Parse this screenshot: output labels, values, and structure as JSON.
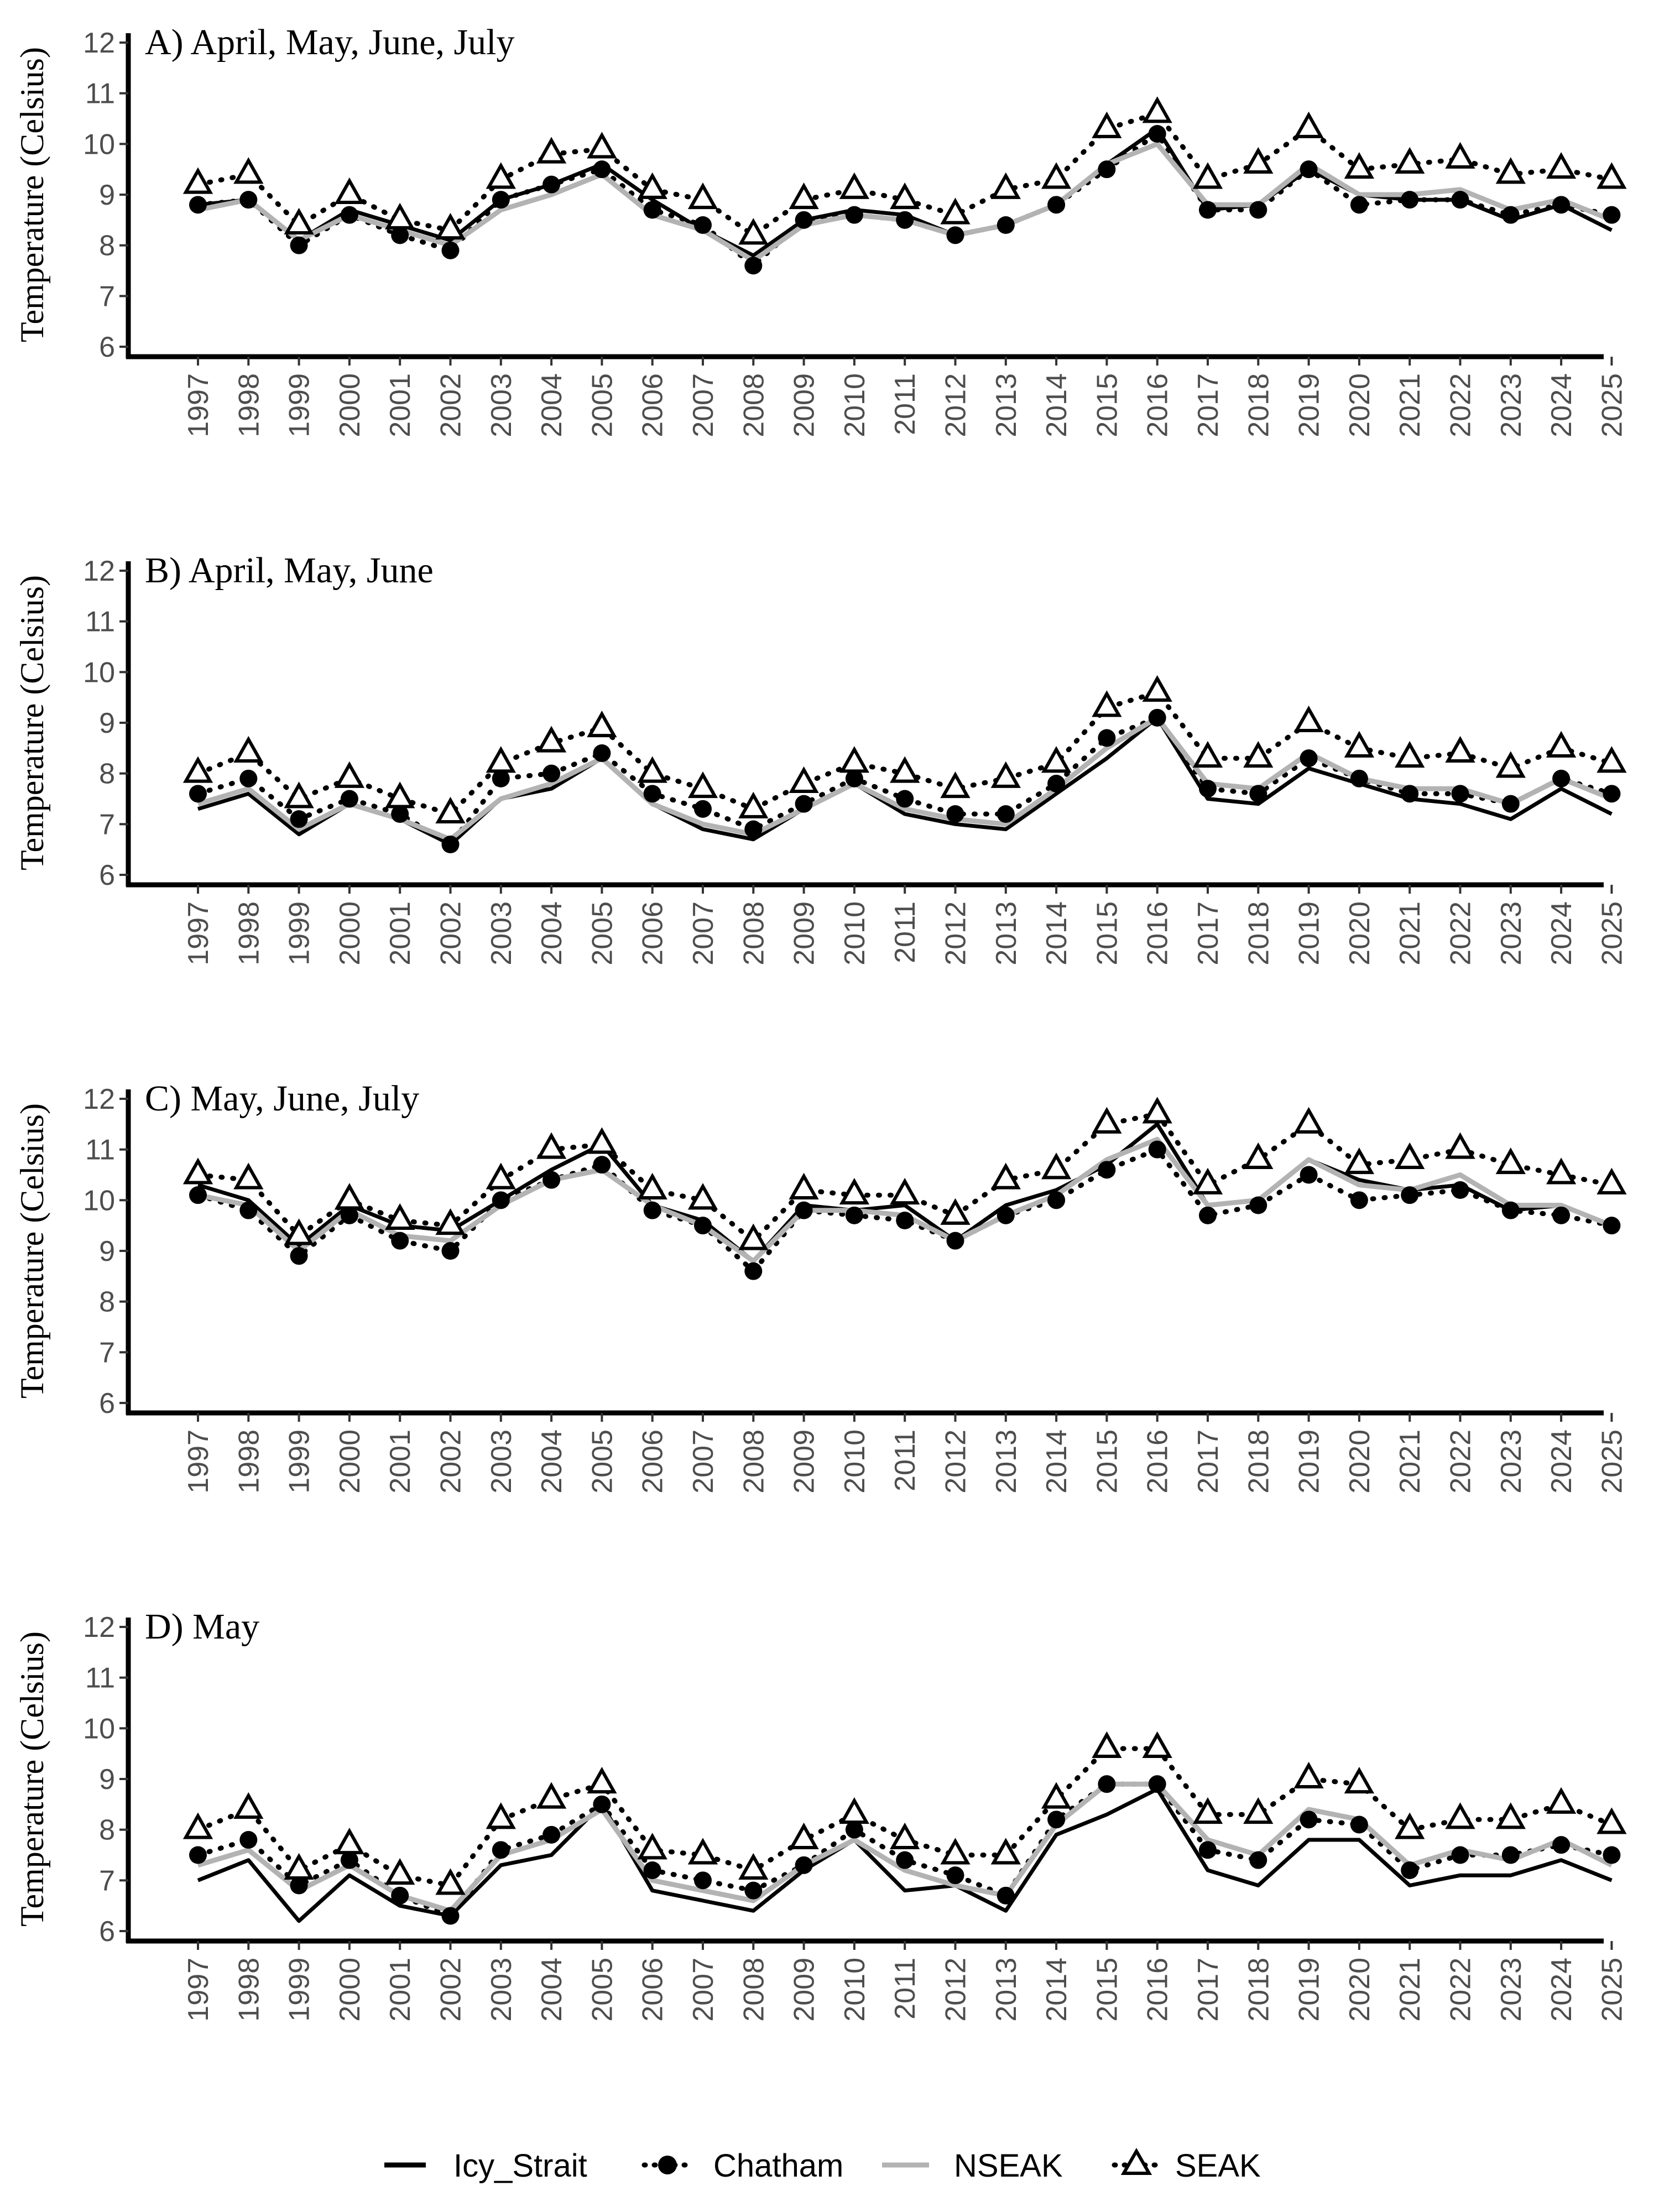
{
  "chart_data": [
    {
      "type": "line",
      "title": "A) April, May, June, July",
      "ylabel": "Temperature (Celsius)",
      "xlabel": "",
      "ylim": [
        6,
        12
      ],
      "yticks": [
        "6",
        "7",
        "8",
        "9",
        "10",
        "11",
        "12"
      ],
      "x": [
        "1997",
        "1998",
        "1999",
        "2000",
        "2001",
        "2002",
        "2003",
        "2004",
        "2005",
        "2006",
        "2007",
        "2008",
        "2009",
        "2010",
        "2011",
        "2012",
        "2013",
        "2014",
        "2015",
        "2016",
        "2017",
        "2018",
        "2019",
        "2020",
        "2021",
        "2022",
        "2023",
        "2024",
        "2025"
      ],
      "series": [
        {
          "name": "Icy_Strait",
          "values": [
            8.8,
            8.9,
            8.1,
            8.7,
            8.4,
            8.1,
            8.9,
            9.2,
            9.6,
            8.9,
            8.3,
            7.8,
            8.5,
            8.7,
            8.6,
            8.2,
            8.4,
            8.8,
            9.6,
            10.3,
            8.7,
            8.8,
            9.5,
            9.0,
            8.9,
            8.9,
            8.5,
            8.8,
            8.3
          ]
        },
        {
          "name": "Chatham",
          "values": [
            8.8,
            8.9,
            8.0,
            8.6,
            8.2,
            7.9,
            8.9,
            9.2,
            9.5,
            8.7,
            8.4,
            7.6,
            8.5,
            8.6,
            8.5,
            8.2,
            8.4,
            8.8,
            9.5,
            10.2,
            8.7,
            8.7,
            9.5,
            8.8,
            8.9,
            8.9,
            8.6,
            8.8,
            8.6
          ]
        },
        {
          "name": "NSEAK",
          "values": [
            8.7,
            8.9,
            8.1,
            8.6,
            8.3,
            8.0,
            8.7,
            9.0,
            9.4,
            8.6,
            8.3,
            7.7,
            8.4,
            8.6,
            8.5,
            8.2,
            8.4,
            8.8,
            9.6,
            10.0,
            8.8,
            8.8,
            9.6,
            9.0,
            9.0,
            9.1,
            8.7,
            8.9,
            8.5
          ]
        },
        {
          "name": "SEAK",
          "values": [
            9.2,
            9.4,
            8.4,
            9.0,
            8.5,
            8.3,
            9.3,
            9.8,
            9.9,
            9.1,
            8.9,
            8.2,
            8.9,
            9.1,
            8.9,
            8.6,
            9.1,
            9.3,
            10.3,
            10.6,
            9.3,
            9.6,
            10.3,
            9.5,
            9.6,
            9.7,
            9.4,
            9.5,
            9.3
          ]
        }
      ]
    },
    {
      "type": "line",
      "title": "B) April, May, June",
      "ylabel": "Temperature (Celsius)",
      "xlabel": "",
      "ylim": [
        6,
        12
      ],
      "yticks": [
        "6",
        "7",
        "8",
        "9",
        "10",
        "11",
        "12"
      ],
      "x": [
        "1997",
        "1998",
        "1999",
        "2000",
        "2001",
        "2002",
        "2003",
        "2004",
        "2005",
        "2006",
        "2007",
        "2008",
        "2009",
        "2010",
        "2011",
        "2012",
        "2013",
        "2014",
        "2015",
        "2016",
        "2017",
        "2018",
        "2019",
        "2020",
        "2021",
        "2022",
        "2023",
        "2024",
        "2025"
      ],
      "series": [
        {
          "name": "Icy_Strait",
          "values": [
            7.3,
            7.6,
            6.8,
            7.4,
            7.1,
            6.6,
            7.5,
            7.7,
            8.3,
            7.4,
            6.9,
            6.7,
            7.3,
            7.8,
            7.2,
            7.0,
            6.9,
            7.6,
            8.3,
            9.1,
            7.5,
            7.4,
            8.1,
            7.8,
            7.5,
            7.4,
            7.1,
            7.7,
            7.2
          ]
        },
        {
          "name": "Chatham",
          "values": [
            7.6,
            7.9,
            7.1,
            7.5,
            7.2,
            6.6,
            7.9,
            8.0,
            8.4,
            7.6,
            7.3,
            6.9,
            7.4,
            7.9,
            7.5,
            7.2,
            7.2,
            7.8,
            8.7,
            9.1,
            7.7,
            7.6,
            8.3,
            7.9,
            7.6,
            7.6,
            7.4,
            7.9,
            7.6
          ]
        },
        {
          "name": "NSEAK",
          "values": [
            7.4,
            7.7,
            6.9,
            7.4,
            7.1,
            6.7,
            7.5,
            7.8,
            8.3,
            7.4,
            7.0,
            6.8,
            7.3,
            7.8,
            7.3,
            7.1,
            7.0,
            7.7,
            8.5,
            9.1,
            7.8,
            7.7,
            8.4,
            7.9,
            7.7,
            7.7,
            7.4,
            7.9,
            7.5
          ]
        },
        {
          "name": "SEAK",
          "values": [
            8.0,
            8.4,
            7.5,
            7.9,
            7.5,
            7.2,
            8.2,
            8.6,
            8.9,
            8.0,
            7.7,
            7.3,
            7.8,
            8.2,
            8.0,
            7.7,
            7.9,
            8.2,
            9.3,
            9.6,
            8.3,
            8.3,
            9.0,
            8.5,
            8.3,
            8.4,
            8.1,
            8.5,
            8.2
          ]
        }
      ]
    },
    {
      "type": "line",
      "title": "C) May, June, July",
      "ylabel": "Temperature (Celsius)",
      "xlabel": "",
      "ylim": [
        6,
        12
      ],
      "yticks": [
        "6",
        "7",
        "8",
        "9",
        "10",
        "11",
        "12"
      ],
      "x": [
        "1997",
        "1998",
        "1999",
        "2000",
        "2001",
        "2002",
        "2003",
        "2004",
        "2005",
        "2006",
        "2007",
        "2008",
        "2009",
        "2010",
        "2011",
        "2012",
        "2013",
        "2014",
        "2015",
        "2016",
        "2017",
        "2018",
        "2019",
        "2020",
        "2021",
        "2022",
        "2023",
        "2024",
        "2025"
      ],
      "series": [
        {
          "name": "Icy_Strait",
          "values": [
            10.3,
            10.0,
            9.1,
            9.9,
            9.5,
            9.4,
            10.0,
            10.6,
            11.1,
            9.9,
            9.6,
            8.8,
            9.9,
            9.8,
            9.9,
            9.2,
            9.9,
            10.2,
            10.7,
            11.5,
            9.9,
            10.0,
            10.8,
            10.4,
            10.2,
            10.3,
            9.8,
            9.9,
            9.5
          ]
        },
        {
          "name": "Chatham",
          "values": [
            10.1,
            9.8,
            8.9,
            9.7,
            9.2,
            9.0,
            10.0,
            10.4,
            10.7,
            9.8,
            9.5,
            8.6,
            9.8,
            9.7,
            9.6,
            9.2,
            9.7,
            10.0,
            10.6,
            11.0,
            9.7,
            9.9,
            10.5,
            10.0,
            10.1,
            10.2,
            9.8,
            9.7,
            9.5
          ]
        },
        {
          "name": "NSEAK",
          "values": [
            10.1,
            9.9,
            9.0,
            9.8,
            9.3,
            9.2,
            9.9,
            10.4,
            10.6,
            9.9,
            9.5,
            8.8,
            9.8,
            9.8,
            9.7,
            9.2,
            9.7,
            10.1,
            10.8,
            11.2,
            9.9,
            10.0,
            10.8,
            10.3,
            10.2,
            10.5,
            9.9,
            9.9,
            9.5
          ]
        },
        {
          "name": "SEAK",
          "values": [
            10.5,
            10.4,
            9.3,
            10.0,
            9.6,
            9.5,
            10.4,
            11.0,
            11.1,
            10.2,
            10.0,
            9.2,
            10.2,
            10.1,
            10.1,
            9.7,
            10.4,
            10.6,
            11.5,
            11.7,
            10.3,
            10.8,
            11.5,
            10.7,
            10.8,
            11.0,
            10.7,
            10.5,
            10.3
          ]
        }
      ]
    },
    {
      "type": "line",
      "title": "D) May",
      "ylabel": "Temperature (Celsius)",
      "xlabel": "",
      "ylim": [
        6,
        12
      ],
      "yticks": [
        "6",
        "7",
        "8",
        "9",
        "10",
        "11",
        "12"
      ],
      "x": [
        "1997",
        "1998",
        "1999",
        "2000",
        "2001",
        "2002",
        "2003",
        "2004",
        "2005",
        "2006",
        "2007",
        "2008",
        "2009",
        "2010",
        "2011",
        "2012",
        "2013",
        "2014",
        "2015",
        "2016",
        "2017",
        "2018",
        "2019",
        "2020",
        "2021",
        "2022",
        "2023",
        "2024",
        "2025"
      ],
      "series": [
        {
          "name": "Icy_Strait",
          "values": [
            7.0,
            7.4,
            6.2,
            7.1,
            6.5,
            6.3,
            7.3,
            7.5,
            8.5,
            6.8,
            6.6,
            6.4,
            7.2,
            7.8,
            6.8,
            6.9,
            6.4,
            7.9,
            8.3,
            8.8,
            7.2,
            6.9,
            7.8,
            7.8,
            6.9,
            7.1,
            7.1,
            7.4,
            7.0
          ]
        },
        {
          "name": "Chatham",
          "values": [
            7.5,
            7.8,
            6.9,
            7.4,
            6.7,
            6.3,
            7.6,
            7.9,
            8.5,
            7.2,
            7.0,
            6.8,
            7.3,
            8.0,
            7.4,
            7.1,
            6.7,
            8.2,
            8.9,
            8.9,
            7.6,
            7.4,
            8.2,
            8.1,
            7.2,
            7.5,
            7.5,
            7.7,
            7.5
          ]
        },
        {
          "name": "NSEAK",
          "values": [
            7.3,
            7.6,
            6.8,
            7.3,
            6.7,
            6.4,
            7.5,
            7.8,
            8.4,
            7.0,
            6.8,
            6.6,
            7.3,
            7.8,
            7.2,
            6.9,
            6.7,
            8.1,
            8.9,
            8.9,
            7.8,
            7.5,
            8.4,
            8.2,
            7.3,
            7.6,
            7.4,
            7.8,
            7.3
          ]
        },
        {
          "name": "SEAK",
          "values": [
            8.0,
            8.4,
            7.2,
            7.7,
            7.1,
            6.9,
            8.2,
            8.6,
            8.9,
            7.6,
            7.5,
            7.2,
            7.8,
            8.3,
            7.8,
            7.5,
            7.5,
            8.6,
            9.6,
            9.6,
            8.3,
            8.3,
            9.0,
            8.9,
            8.0,
            8.2,
            8.2,
            8.5,
            8.1
          ]
        }
      ]
    }
  ],
  "legend": {
    "position": "bottom",
    "items": [
      {
        "label": "Icy_Strait",
        "color": "#000000",
        "line": "solid",
        "marker": "none"
      },
      {
        "label": "Chatham",
        "color": "#000000",
        "line": "none",
        "marker": "filled-circle"
      },
      {
        "label": "NSEAK",
        "color": "#b3b3b3",
        "line": "solid",
        "marker": "none"
      },
      {
        "label": "SEAK",
        "color": "#000000",
        "line": "dotted",
        "marker": "open-triangle"
      }
    ]
  }
}
